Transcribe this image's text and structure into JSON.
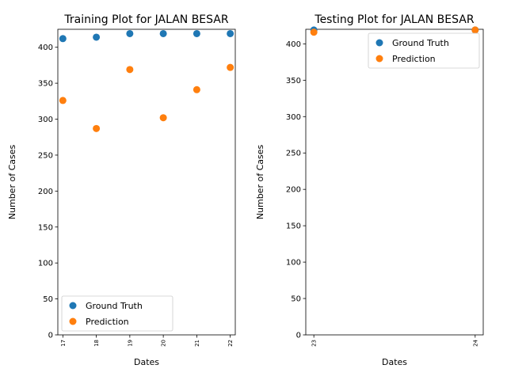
{
  "chart_data": [
    {
      "type": "scatter",
      "title": "Training Plot for JALAN BESAR",
      "xlabel": "Dates",
      "ylabel": "Number of Cases",
      "x": [
        "17",
        "18",
        "19",
        "20",
        "21",
        "22"
      ],
      "xlim": [
        16.85,
        22.15
      ],
      "ylim": [
        0,
        425
      ],
      "yticks": [
        0,
        50,
        100,
        150,
        200,
        250,
        300,
        350,
        400
      ],
      "series": [
        {
          "name": "Ground Truth",
          "color": "#1f77b4",
          "values": [
            412,
            414,
            419,
            419,
            419,
            419
          ]
        },
        {
          "name": "Prediction",
          "color": "#ff7f0e",
          "values": [
            326,
            287,
            369,
            302,
            341,
            372
          ]
        }
      ],
      "legend": "lower-left",
      "grid": false
    },
    {
      "type": "scatter",
      "title": "Testing Plot for JALAN BESAR",
      "xlabel": "Dates",
      "ylabel": "Number of Cases",
      "x": [
        "23",
        "24"
      ],
      "xlim": [
        22.95,
        24.05
      ],
      "ylim": [
        0,
        420
      ],
      "yticks": [
        0,
        50,
        100,
        150,
        200,
        250,
        300,
        350,
        400
      ],
      "series": [
        {
          "name": "Ground Truth",
          "color": "#1f77b4",
          "values": [
            419,
            419
          ]
        },
        {
          "name": "Prediction",
          "color": "#ff7f0e",
          "values": [
            416,
            419
          ]
        }
      ],
      "legend": "upper-right",
      "grid": false
    }
  ]
}
